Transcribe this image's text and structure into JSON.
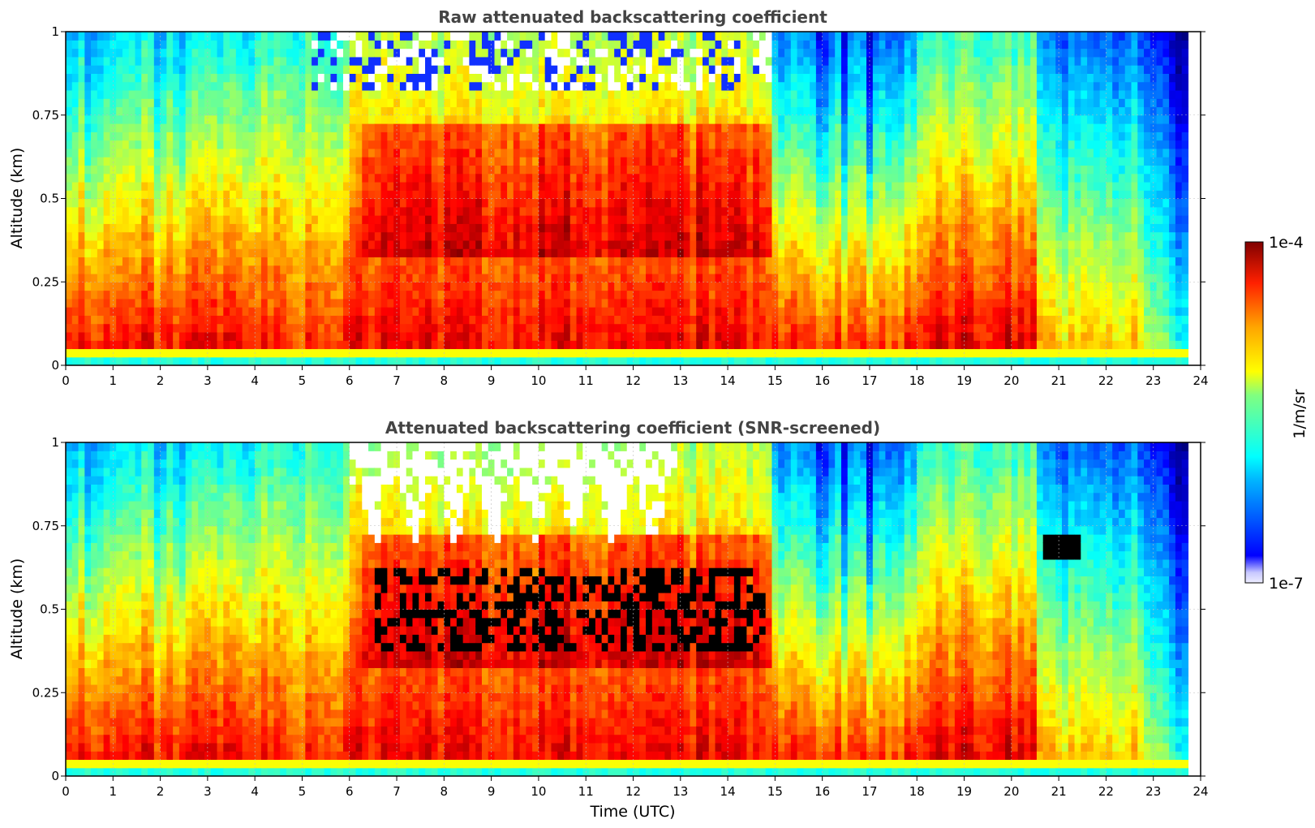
{
  "chart_data": [
    {
      "type": "heatmap",
      "title": "Raw attenuated backscattering coefficient",
      "xlabel": "",
      "ylabel": "Altitude (km)",
      "xlim": [
        0,
        24
      ],
      "ylim": [
        0,
        1
      ],
      "x_ticks": [
        "0",
        "1",
        "2",
        "3",
        "4",
        "5",
        "6",
        "7",
        "8",
        "9",
        "10",
        "11",
        "12",
        "13",
        "14",
        "15",
        "16",
        "17",
        "18",
        "19",
        "20",
        "21",
        "22",
        "23",
        "24"
      ],
      "y_ticks": [
        "0",
        "0.25",
        "0.5",
        "0.75",
        "1"
      ],
      "screened": false
    },
    {
      "type": "heatmap",
      "title": "Attenuated backscattering coefficient (SNR-screened)",
      "xlabel": "Time (UTC)",
      "ylabel": "Altitude (km)",
      "xlim": [
        0,
        24
      ],
      "ylim": [
        0,
        1
      ],
      "x_ticks": [
        "0",
        "1",
        "2",
        "3",
        "4",
        "5",
        "6",
        "7",
        "8",
        "9",
        "10",
        "11",
        "12",
        "13",
        "14",
        "15",
        "16",
        "17",
        "18",
        "19",
        "20",
        "21",
        "22",
        "23",
        "24"
      ],
      "y_ticks": [
        "0",
        "0.25",
        "0.5",
        "0.75",
        "1"
      ],
      "screened": true
    }
  ],
  "colorbar": {
    "label": "1/m/sr",
    "max_label": "1e-4",
    "min_label": "1e-7",
    "scale": "log",
    "colormap": "jet"
  },
  "colors": {
    "title": "#444444",
    "grid": "#bbbbbb",
    "axis": "#000000",
    "screened_black": "#000000"
  }
}
